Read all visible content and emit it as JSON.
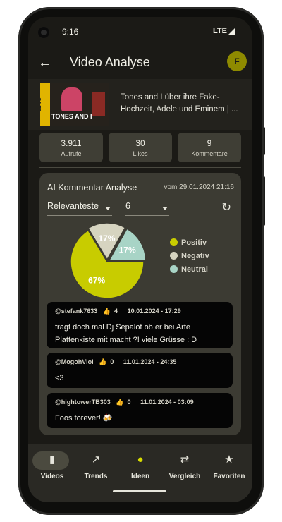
{
  "status": {
    "time": "9:16",
    "network": "LTE"
  },
  "appbar": {
    "title": "Video Analyse",
    "avatar_letter": "F"
  },
  "video": {
    "title": "Tones and I über ihre Fake-Hochzeit, Adele und Eminem | ...",
    "thumb_brand": "arte",
    "thumb_caption": "TONES AND I"
  },
  "stats": [
    {
      "value": "3.911",
      "label": "Aufrufe"
    },
    {
      "value": "30",
      "label": "Likes"
    },
    {
      "value": "9",
      "label": "Kommentare"
    }
  ],
  "analysis": {
    "title": "AI Kommentar Analyse",
    "date": "vom 29.01.2024 21:16",
    "sort_selected": "Relevanteste",
    "count_selected": "6"
  },
  "chart_data": {
    "type": "pie",
    "categories": [
      "Positiv",
      "Negativ",
      "Neutral"
    ],
    "values": [
      67,
      17,
      17
    ],
    "labels": [
      "67%",
      "17%",
      "17%"
    ],
    "colors": [
      "#c8cc00",
      "#d6d4c0",
      "#a8d4c6"
    ],
    "legend_placement": "right"
  },
  "comments": [
    {
      "author": "@stefank7633",
      "likes": "4",
      "date": "10.01.2024 - 17:29",
      "text": "fragt doch mal Dj Sepalot ob er bei Arte Plattenkiste mit macht ?! viele Grüsse : D"
    },
    {
      "author": "@MogohViol",
      "likes": "0",
      "date": "11.01.2024 - 24:35",
      "text": "<3"
    },
    {
      "author": "@hightowerTB303",
      "likes": "0",
      "date": "11.01.2024 - 03:09",
      "text": "Foos forever! 🍻"
    }
  ],
  "nav": [
    {
      "label": "Videos",
      "icon": "clapperboard-icon"
    },
    {
      "label": "Trends",
      "icon": "trending-up-icon"
    },
    {
      "label": "Ideen",
      "icon": "lightbulb-icon"
    },
    {
      "label": "Vergleich",
      "icon": "compare-icon"
    },
    {
      "label": "Favoriten",
      "icon": "star-icon"
    }
  ]
}
